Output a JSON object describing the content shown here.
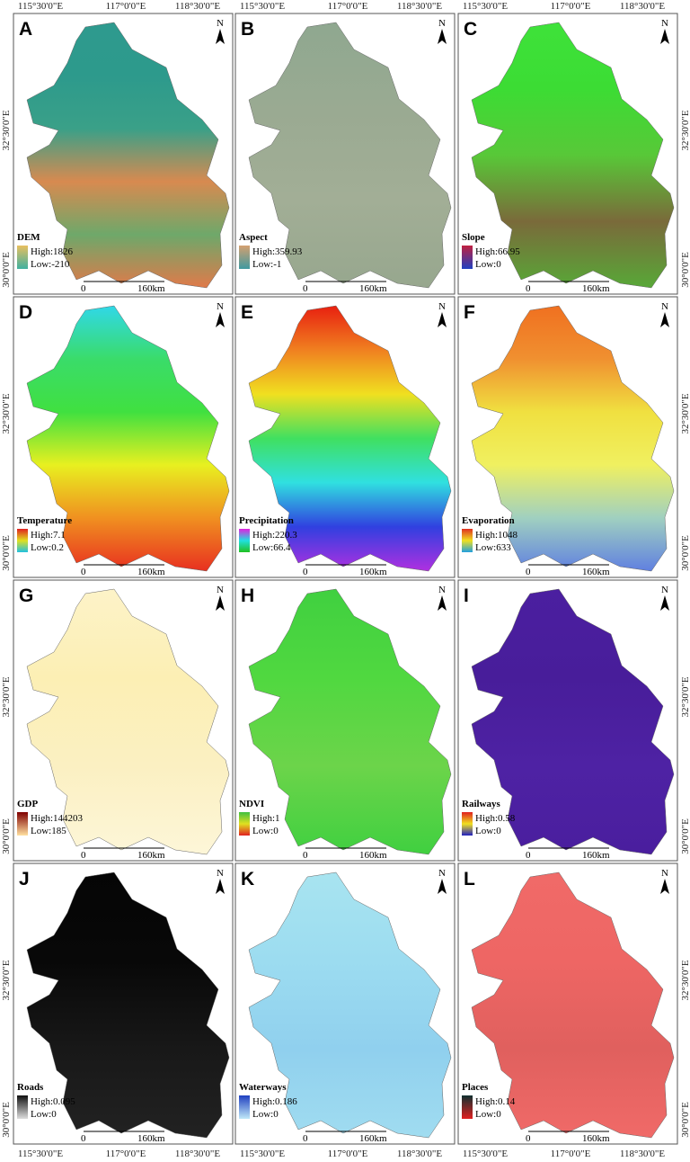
{
  "graticule": {
    "longitudes": [
      "115°30'0\"E",
      "117°0'0\"E",
      "118°30'0\"E"
    ],
    "latitudes": [
      "32°30'0\"E",
      "30°0'0\"E"
    ]
  },
  "north_label": "N",
  "scale": {
    "start": "0",
    "end": "160km"
  },
  "panels": [
    {
      "letter": "A",
      "layer": "DEM",
      "high": "High:1826",
      "low": "Low:-210"
    },
    {
      "letter": "B",
      "layer": "Aspect",
      "high": "High:359.93",
      "low": "Low:-1"
    },
    {
      "letter": "C",
      "layer": "Slope",
      "high": "High:66.95",
      "low": "Low:0"
    },
    {
      "letter": "D",
      "layer": "Temperature",
      "high": "High:7.1",
      "low": "Low:0.2"
    },
    {
      "letter": "E",
      "layer": "Precipitation",
      "high": "High:220.3",
      "low": "Low:66.4"
    },
    {
      "letter": "F",
      "layer": "Evaporation",
      "high": "High:1048",
      "low": "Low:633"
    },
    {
      "letter": "G",
      "layer": "GDP",
      "high": "High:144203",
      "low": "Low:185"
    },
    {
      "letter": "H",
      "layer": "NDVI",
      "high": "High:1",
      "low": "Low:0"
    },
    {
      "letter": "I",
      "layer": "Railways",
      "high": "High:0.58",
      "low": "Low:0"
    },
    {
      "letter": "J",
      "layer": "Roads",
      "high": "High:0.095",
      "low": "Low:0"
    },
    {
      "letter": "K",
      "layer": "Waterways",
      "high": "High:0.186",
      "low": "Low:0"
    },
    {
      "letter": "L",
      "layer": "Places",
      "high": "High:0.14",
      "low": "Low:0"
    }
  ]
}
